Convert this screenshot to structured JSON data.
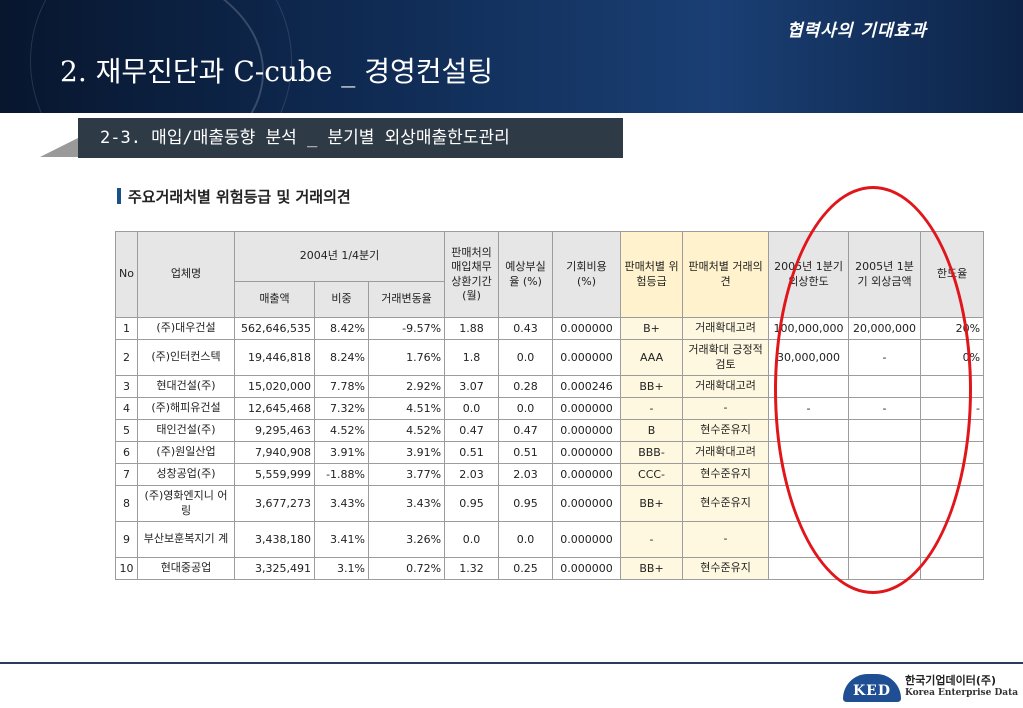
{
  "banner": {
    "tag": "협력사의 기대효과",
    "title": "2. 재무진단과 C-cube _ 경영컨설팅"
  },
  "section": {
    "title": "2-3. 매입/매출동향 분석 _ 분기별 외상매출한도관리"
  },
  "subheading": "주요거래처별 위험등급 및 거래의견",
  "table": {
    "headers": {
      "no": "No",
      "company": "업체명",
      "period": "2004년 1/4분기",
      "sales": "매출액",
      "share": "비중",
      "change": "거래변동율",
      "payback": "판매처의 매입채무 상환기간 (월)",
      "baddebt": "예상부실 율 (%)",
      "oppcost": "기회비용 (%)",
      "grade": "판매처별 위험등급",
      "opinion": "판매처별 거래의견",
      "limit": "2005년 1분기 외상한도",
      "amount": "2005년 1분기 외상금액",
      "ratio": "한도율"
    },
    "rows": [
      {
        "no": "1",
        "company": "(주)대우건설",
        "sales": "562,646,535",
        "share": "8.42%",
        "change": "-9.57%",
        "payback": "1.88",
        "baddebt": "0.43",
        "oppcost": "0.000000",
        "grade": "B+",
        "opinion": "거래확대고려",
        "limit": "100,000,000",
        "amount": "20,000,000",
        "ratio": "20%"
      },
      {
        "no": "2",
        "company": "(주)인터컨스텍",
        "sales": "19,446,818",
        "share": "8.24%",
        "change": "1.76%",
        "payback": "1.8",
        "baddebt": "0.0",
        "oppcost": "0.000000",
        "grade": "AAA",
        "opinion": "거래확대 긍정적검토",
        "limit": "30,000,000",
        "amount": "-",
        "ratio": "0%"
      },
      {
        "no": "3",
        "company": "현대건설(주)",
        "sales": "15,020,000",
        "share": "7.78%",
        "change": "2.92%",
        "payback": "3.07",
        "baddebt": "0.28",
        "oppcost": "0.000246",
        "grade": "BB+",
        "opinion": "거래확대고려",
        "limit": "",
        "amount": "",
        "ratio": ""
      },
      {
        "no": "4",
        "company": "(주)해피유건설",
        "sales": "12,645,468",
        "share": "7.32%",
        "change": "4.51%",
        "payback": "0.0",
        "baddebt": "0.0",
        "oppcost": "0.000000",
        "grade": "-",
        "opinion": "-",
        "limit": "-",
        "amount": "-",
        "ratio": "-"
      },
      {
        "no": "5",
        "company": "태인건설(주)",
        "sales": "9,295,463",
        "share": "4.52%",
        "change": "4.52%",
        "payback": "0.47",
        "baddebt": "0.47",
        "oppcost": "0.000000",
        "grade": "B",
        "opinion": "현수준유지",
        "limit": "",
        "amount": "",
        "ratio": ""
      },
      {
        "no": "6",
        "company": "(주)원일산업",
        "sales": "7,940,908",
        "share": "3.91%",
        "change": "3.91%",
        "payback": "0.51",
        "baddebt": "0.51",
        "oppcost": "0.000000",
        "grade": "BBB-",
        "opinion": "거래확대고려",
        "limit": "",
        "amount": "",
        "ratio": ""
      },
      {
        "no": "7",
        "company": "성창공업(주)",
        "sales": "5,559,999",
        "share": "-1.88%",
        "change": "3.77%",
        "payback": "2.03",
        "baddebt": "2.03",
        "oppcost": "0.000000",
        "grade": "CCC-",
        "opinion": "현수준유지",
        "limit": "",
        "amount": "",
        "ratio": ""
      },
      {
        "no": "8",
        "company": "(주)영화엔지니 어링",
        "sales": "3,677,273",
        "share": "3.43%",
        "change": "3.43%",
        "payback": "0.95",
        "baddebt": "0.95",
        "oppcost": "0.000000",
        "grade": "BB+",
        "opinion": "현수준유지",
        "limit": "",
        "amount": "",
        "ratio": ""
      },
      {
        "no": "9",
        "company": "부산보훈복지기 계",
        "sales": "3,438,180",
        "share": "3.41%",
        "change": "3.26%",
        "payback": "0.0",
        "baddebt": "0.0",
        "oppcost": "0.000000",
        "grade": "-",
        "opinion": "-",
        "limit": "",
        "amount": "",
        "ratio": ""
      },
      {
        "no": "10",
        "company": "현대중공업",
        "sales": "3,325,491",
        "share": "3.1%",
        "change": "0.72%",
        "payback": "1.32",
        "baddebt": "0.25",
        "oppcost": "0.000000",
        "grade": "BB+",
        "opinion": "현수준유지",
        "limit": "",
        "amount": "",
        "ratio": ""
      }
    ]
  },
  "logo": {
    "mark": "KED",
    "name_ko": "한국기업데이터(주)",
    "name_en": "Korea Enterprise Data"
  },
  "colors": {
    "banner": "#0f2a52",
    "section_box": "#2f3a47",
    "highlight_yellow": "#fff2cc",
    "ellipse": "#e0161b"
  }
}
